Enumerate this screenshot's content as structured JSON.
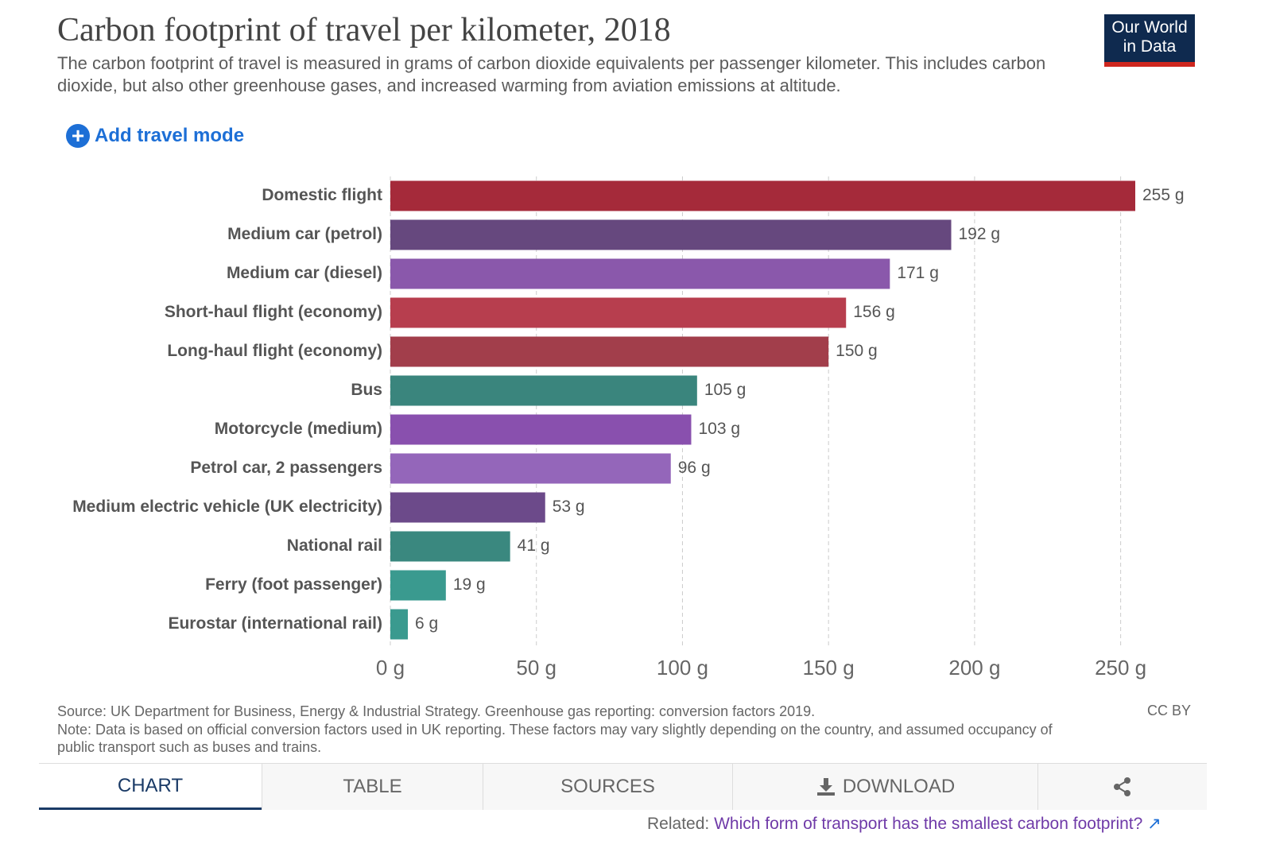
{
  "header": {
    "title": "Carbon footprint of travel per kilometer, 2018",
    "subtitle": "The carbon footprint of travel is measured in grams of carbon dioxide equivalents per passenger kilometer. This includes carbon dioxide, but also other greenhouse gases, and increased warming from aviation emissions at altitude.",
    "logo": [
      "Our World",
      "in Data"
    ],
    "add_button": "Add travel mode"
  },
  "chart_data": {
    "type": "hbar",
    "categories": [
      "Domestic flight",
      "Medium car (petrol)",
      "Medium car (diesel)",
      "Short-haul flight (economy)",
      "Long-haul flight (economy)",
      "Bus",
      "Motorcycle (medium)",
      "Petrol car, 2 passengers",
      "Medium electric vehicle (UK electricity)",
      "National rail",
      "Ferry (foot passenger)",
      "Eurostar (international rail)"
    ],
    "values": [
      255,
      192,
      171,
      156,
      150,
      105,
      103,
      96,
      53,
      41,
      19,
      6
    ],
    "value_labels": [
      "255 g",
      "192 g",
      "171 g",
      "156 g",
      "150 g",
      "105 g",
      "103 g",
      "96 g",
      "53 g",
      "41 g",
      "19 g",
      "6 g"
    ],
    "colors": [
      "#a52a3a",
      "#66487e",
      "#8a58ab",
      "#b73e4e",
      "#a23e4b",
      "#3a857d",
      "#8950ae",
      "#9466ba",
      "#6c4a8a",
      "#3a887f",
      "#3a9a8f",
      "#3a9a8f"
    ],
    "xlim": [
      0,
      255
    ],
    "xticks": [
      {
        "value": 0,
        "label": "0 g"
      },
      {
        "value": 50,
        "label": "50 g"
      },
      {
        "value": 100,
        "label": "100 g"
      },
      {
        "value": 150,
        "label": "150 g"
      },
      {
        "value": 200,
        "label": "200 g"
      },
      {
        "value": 250,
        "label": "250 g"
      }
    ],
    "grid": true
  },
  "footer": {
    "source": "Source: UK Department for Business, Energy & Industrial Strategy. Greenhouse gas reporting: conversion factors 2019.",
    "note": "Note: Data is based on official conversion factors used in UK reporting. These factors may vary slightly depending on the country, and assumed occupancy of public transport such as buses and trains.",
    "license": "CC BY"
  },
  "tabs": [
    "CHART",
    "TABLE",
    "SOURCES",
    "DOWNLOAD"
  ],
  "related": {
    "label": "Related:",
    "link": "Which form of transport has the smallest carbon footprint?"
  }
}
